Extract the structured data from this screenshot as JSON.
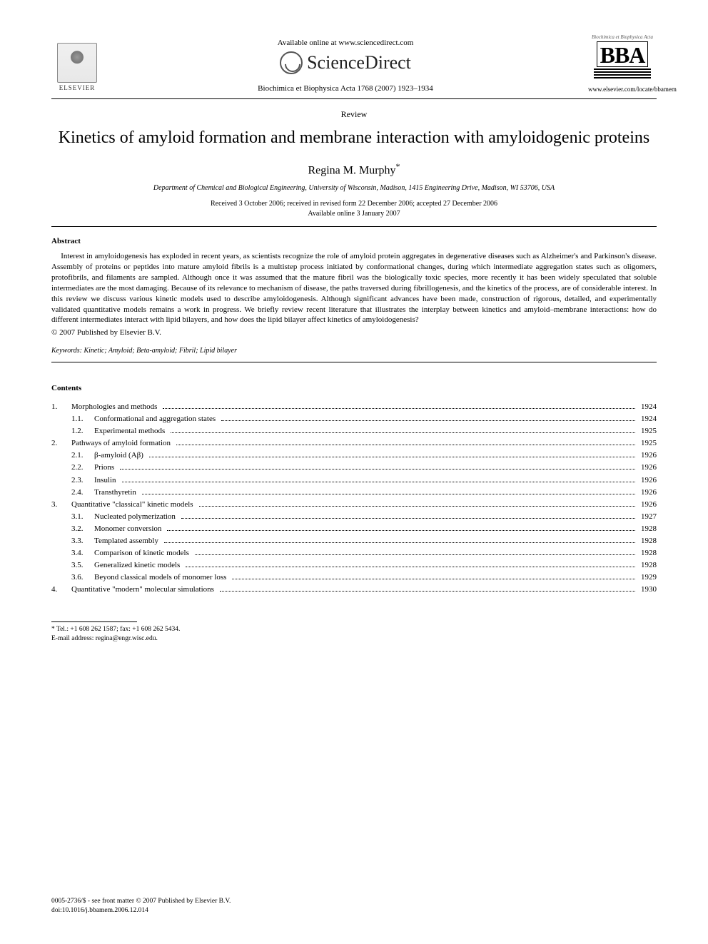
{
  "header": {
    "available_text": "Available online at www.sciencedirect.com",
    "sd_brand": "ScienceDirect",
    "journal_ref": "Biochimica et Biophysica Acta 1768 (2007) 1923–1934",
    "elsevier_label": "ELSEVIER",
    "bba_top": "Biochimica et Biophysica Acta",
    "bba_logo": "BBA",
    "journal_url": "www.elsevier.com/locate/bbamem"
  },
  "article": {
    "type_label": "Review",
    "title": "Kinetics of amyloid formation and membrane interaction with amyloidogenic proteins",
    "author": "Regina M. Murphy",
    "author_mark": "*",
    "affiliation": "Department of Chemical and Biological Engineering, University of Wisconsin, Madison, 1415 Engineering Drive, Madison, WI 53706, USA",
    "dates_line1": "Received 3 October 2006; received in revised form 22 December 2006; accepted 27 December 2006",
    "dates_line2": "Available online 3 January 2007"
  },
  "abstract": {
    "heading": "Abstract",
    "text": "Interest in amyloidogenesis has exploded in recent years, as scientists recognize the role of amyloid protein aggregates in degenerative diseases such as Alzheimer's and Parkinson's disease. Assembly of proteins or peptides into mature amyloid fibrils is a multistep process initiated by conformational changes, during which intermediate aggregation states such as oligomers, protofibrils, and filaments are sampled. Although once it was assumed that the mature fibril was the biologically toxic species, more recently it has been widely speculated that soluble intermediates are the most damaging. Because of its relevance to mechanism of disease, the paths traversed during fibrillogenesis, and the kinetics of the process, are of considerable interest. In this review we discuss various kinetic models used to describe amyloidogenesis. Although significant advances have been made, construction of rigorous, detailed, and experimentally validated quantitative models remains a work in progress. We briefly review recent literature that illustrates the interplay between kinetics and amyloid–membrane interactions: how do different intermediates interact with lipid bilayers, and how does the lipid bilayer affect kinetics of amyloidogenesis?",
    "copyright": "© 2007 Published by Elsevier B.V."
  },
  "keywords": {
    "label": "Keywords:",
    "list": "Kinetic; Amyloid; Beta-amyloid; Fibril; Lipid bilayer"
  },
  "contents": {
    "heading": "Contents",
    "items": [
      {
        "num": "1.",
        "sub": "",
        "label": "Morphologies and methods",
        "page": "1924"
      },
      {
        "num": "",
        "sub": "1.1.",
        "label": "Conformational and aggregation states",
        "page": "1924"
      },
      {
        "num": "",
        "sub": "1.2.",
        "label": "Experimental methods",
        "page": "1925"
      },
      {
        "num": "2.",
        "sub": "",
        "label": "Pathways of amyloid formation",
        "page": "1925"
      },
      {
        "num": "",
        "sub": "2.1.",
        "label": "β-amyloid (Aβ)",
        "page": "1926"
      },
      {
        "num": "",
        "sub": "2.2.",
        "label": "Prions",
        "page": "1926"
      },
      {
        "num": "",
        "sub": "2.3.",
        "label": "Insulin",
        "page": "1926"
      },
      {
        "num": "",
        "sub": "2.4.",
        "label": "Transthyretin",
        "page": "1926"
      },
      {
        "num": "3.",
        "sub": "",
        "label": "Quantitative \"classical\" kinetic models",
        "page": "1926"
      },
      {
        "num": "",
        "sub": "3.1.",
        "label": "Nucleated polymerization",
        "page": "1927"
      },
      {
        "num": "",
        "sub": "3.2.",
        "label": "Monomer conversion",
        "page": "1928"
      },
      {
        "num": "",
        "sub": "3.3.",
        "label": "Templated assembly",
        "page": "1928"
      },
      {
        "num": "",
        "sub": "3.4.",
        "label": "Comparison of kinetic models",
        "page": "1928"
      },
      {
        "num": "",
        "sub": "3.5.",
        "label": "Generalized kinetic models",
        "page": "1928"
      },
      {
        "num": "",
        "sub": "3.6.",
        "label": "Beyond classical models of monomer loss",
        "page": "1929"
      },
      {
        "num": "4.",
        "sub": "",
        "label": "Quantitative \"modern\" molecular simulations",
        "page": "1930"
      }
    ]
  },
  "footnote": {
    "corr": "* Tel.: +1 608 262 1587; fax: +1 608 262 5434.",
    "email_label": "E-mail address:",
    "email": "regina@engr.wisc.edu."
  },
  "footer": {
    "issn": "0005-2736/$ - see front matter © 2007 Published by Elsevier B.V.",
    "doi": "doi:10.1016/j.bbamem.2006.12.014"
  }
}
